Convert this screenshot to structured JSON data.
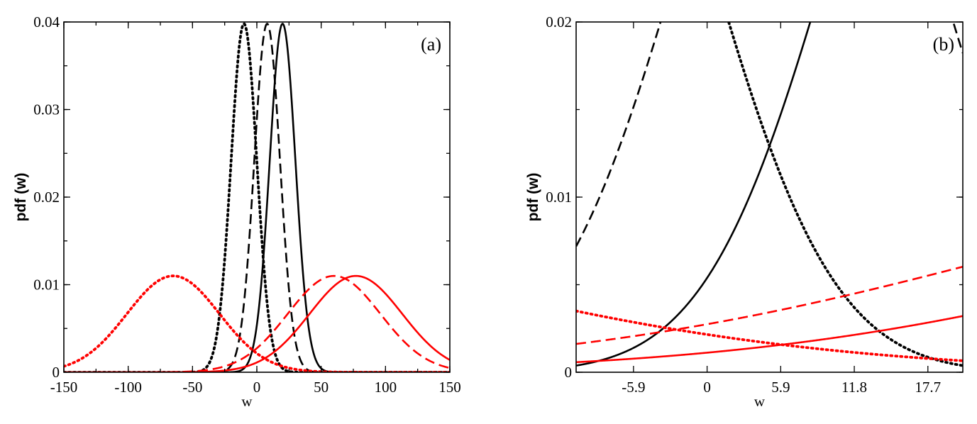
{
  "chart_data": [
    {
      "type": "line",
      "panel_label": "(a)",
      "xlabel": "w",
      "ylabel": "pdf (w)",
      "xlim": [
        -150,
        150
      ],
      "ylim": [
        0,
        0.04
      ],
      "x_ticks": [
        -150,
        -100,
        -50,
        0,
        50,
        100,
        150
      ],
      "x_tick_labels": [
        "-150",
        "-100",
        "-50",
        "0",
        "50",
        "100",
        "150"
      ],
      "y_ticks": [
        0,
        0.01,
        0.02,
        0.03,
        0.04
      ],
      "y_tick_labels": [
        "0",
        "0.01",
        "0.02",
        "0.03",
        "0.04"
      ],
      "x_minor_step": 25,
      "y_minor_step": 0.005,
      "grid": false,
      "series": [
        {
          "color": "#000000",
          "style": "dotted",
          "mean": -10,
          "sd": 10,
          "peak": 0.0398
        },
        {
          "color": "#000000",
          "style": "dashed",
          "mean": 8,
          "sd": 10,
          "peak": 0.0398
        },
        {
          "color": "#000000",
          "style": "solid",
          "mean": 20,
          "sd": 10,
          "peak": 0.0398
        },
        {
          "color": "#ff0000",
          "style": "dotted",
          "mean": -65,
          "sd": 36,
          "peak": 0.011
        },
        {
          "color": "#ff0000",
          "style": "dashed",
          "mean": 60,
          "sd": 36,
          "peak": 0.011
        },
        {
          "color": "#ff0000",
          "style": "solid",
          "mean": 77,
          "sd": 36,
          "peak": 0.011
        }
      ]
    },
    {
      "type": "line",
      "panel_label": "(b)",
      "xlabel": "w",
      "ylabel": "pdf (w)",
      "xlim": [
        -10.5,
        20.5
      ],
      "ylim": [
        0,
        0.02
      ],
      "x_ticks": [
        -5.9,
        0,
        5.9,
        11.8,
        17.7
      ],
      "x_tick_labels": [
        "-5.9",
        "0",
        "5.9",
        "11.8",
        "17.7"
      ],
      "y_ticks": [
        0,
        0.01,
        0.02
      ],
      "y_tick_labels": [
        "0",
        "0.01",
        "0.02"
      ],
      "y_minor_step": 0.005,
      "grid": false,
      "series": [
        {
          "color": "#000000",
          "style": "dotted",
          "mean": -10,
          "sd": 10,
          "peak": 0.0398
        },
        {
          "color": "#000000",
          "style": "dashed",
          "mean": 8,
          "sd": 10,
          "peak": 0.0398
        },
        {
          "color": "#000000",
          "style": "solid",
          "mean": 20,
          "sd": 10,
          "peak": 0.0398
        },
        {
          "color": "#ff0000",
          "style": "dotted",
          "mean": -65,
          "sd": 36,
          "peak": 0.011
        },
        {
          "color": "#ff0000",
          "style": "dashed",
          "mean": 60,
          "sd": 36,
          "peak": 0.011
        },
        {
          "color": "#ff0000",
          "style": "solid",
          "mean": 77,
          "sd": 36,
          "peak": 0.011
        }
      ]
    }
  ]
}
